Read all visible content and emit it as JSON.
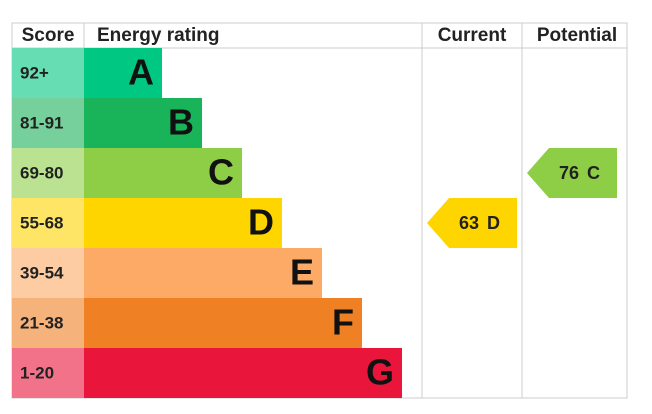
{
  "header": {
    "score": "Score",
    "energy_rating": "Energy rating",
    "current": "Current",
    "potential": "Potential"
  },
  "bands": [
    {
      "score": "92+",
      "letter": "A",
      "color": "#00c781",
      "light": "#66ddb3"
    },
    {
      "score": "81-91",
      "letter": "B",
      "color": "#19b459",
      "light": "#75d09b"
    },
    {
      "score": "69-80",
      "letter": "C",
      "color": "#8dce46",
      "light": "#bbe290"
    },
    {
      "score": "55-68",
      "letter": "D",
      "color": "#ffd500",
      "light": "#ffe566"
    },
    {
      "score": "39-54",
      "letter": "E",
      "color": "#fcaa65",
      "light": "#fdcca3"
    },
    {
      "score": "21-38",
      "letter": "F",
      "color": "#ef8023",
      "light": "#f5b37b"
    },
    {
      "score": "1-20",
      "letter": "G",
      "color": "#e9153b",
      "light": "#f27389"
    }
  ],
  "current": {
    "score": 63,
    "rating": "D"
  },
  "potential": {
    "score": 76,
    "rating": "C"
  }
}
